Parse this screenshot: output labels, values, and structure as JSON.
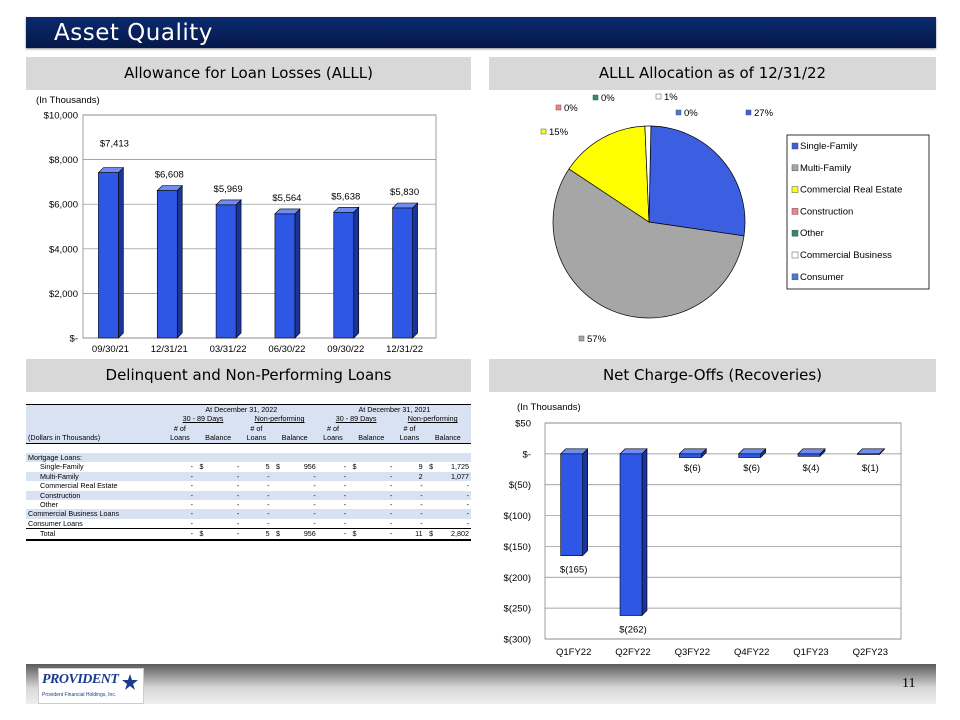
{
  "slide": {
    "title": "Asset Quality",
    "page_number": "11",
    "logo_text": "PROVIDENT",
    "logo_subtext": "Provident Financial Holdings, Inc."
  },
  "sections": {
    "allowance": "Allowance for Loan Losses (ALLL)",
    "allocation": "ALLL Allocation as of 12/31/22",
    "delinquent": "Delinquent and Non-Performing Loans",
    "chargeoffs": "Net Charge-Offs (Recoveries)"
  },
  "colors": {
    "bar_blue": "#2e57e6",
    "bar_blue_dark": "#1a3599",
    "header_blue": "#0a2a6e",
    "section_gray": "#d8d8d8",
    "table_shade": "#d9e2f3"
  },
  "chart_data": [
    {
      "type": "bar",
      "note": "(In Thousands)",
      "categories": [
        "09/30/21",
        "12/31/21",
        "03/31/22",
        "06/30/22",
        "09/30/22",
        "12/31/22"
      ],
      "values": [
        7413,
        6608,
        5969,
        5564,
        5638,
        5830
      ],
      "data_labels": [
        "$7,413",
        "$6,608",
        "$5,969",
        "$5,564",
        "$5,638",
        "$5,830"
      ],
      "yticks": [
        "$10,000",
        "$8,000",
        "$6,000",
        "$4,000",
        "$2,000",
        "$-"
      ],
      "ylim": [
        0,
        10000
      ],
      "grid": true
    },
    {
      "type": "pie",
      "slices": [
        {
          "name": "Single-Family",
          "value": 27,
          "label": "27%",
          "color": "#3b5fe0"
        },
        {
          "name": "Multi-Family",
          "value": 57,
          "label": "57%",
          "color": "#a6a6a6"
        },
        {
          "name": "Commercial Real Estate",
          "value": 15,
          "label": "15%",
          "color": "#ffff00"
        },
        {
          "name": "Construction",
          "value": 0,
          "label": "0%",
          "color": "#ff7f7f"
        },
        {
          "name": "Other",
          "value": 0,
          "label": "0%",
          "color": "#2e8b6f"
        },
        {
          "name": "Commercial Business",
          "value": 1,
          "label": "1%",
          "color": "#ffffff"
        },
        {
          "name": "Consumer",
          "value": 0,
          "label": "0%",
          "color": "#4a7bd0"
        }
      ],
      "legend_position": "right"
    },
    {
      "type": "bar",
      "note": "(In Thousands)",
      "categories": [
        "Q1FY22",
        "Q2FY22",
        "Q3FY22",
        "Q4FY22",
        "Q1FY23",
        "Q2FY23"
      ],
      "values": [
        -165,
        -262,
        -6,
        -6,
        -4,
        -1
      ],
      "data_labels": [
        "$(165)",
        "$(262)",
        "$(6)",
        "$(6)",
        "$(4)",
        "$(1)"
      ],
      "yticks": [
        "$50",
        "$-",
        "$(50)",
        "$(100)",
        "$(150)",
        "$(200)",
        "$(250)",
        "$(300)"
      ],
      "ylim": [
        -300,
        50
      ],
      "grid": true
    },
    {
      "type": "table",
      "group_headers": [
        "At December 31, 2022",
        "At December 31, 2021"
      ],
      "sub_headers": [
        "30 - 89 Days",
        "Non-performing",
        "30 - 89 Days",
        "Non-performing"
      ],
      "col_top": [
        "# of",
        "",
        "# of",
        "",
        "# of",
        "",
        "# of",
        ""
      ],
      "col_bottom": [
        "Loans",
        "Balance",
        "Loans",
        "Balance",
        "Loans",
        "Balance",
        "Loans",
        "Balance"
      ],
      "row_header_label": "(Dollars in Thousands)",
      "section_label": "Mortgage Loans:",
      "rows": [
        {
          "label": "Single-Family",
          "cells": [
            "-",
            "$",
            "-",
            "5",
            "$",
            "956",
            "-",
            "$",
            "-",
            "9",
            "$",
            "1,725"
          ]
        },
        {
          "label": "Multi-Family",
          "cells": [
            "-",
            "",
            "-",
            "-",
            "",
            "-",
            "-",
            "",
            "-",
            "2",
            "",
            "1,077"
          ]
        },
        {
          "label": "Commercial Real Estate",
          "cells": [
            "-",
            "",
            "-",
            "-",
            "",
            "-",
            "-",
            "",
            "-",
            "-",
            "",
            "-"
          ]
        },
        {
          "label": "Construction",
          "cells": [
            "-",
            "",
            "-",
            "-",
            "",
            "-",
            "-",
            "",
            "-",
            "-",
            "",
            "-"
          ]
        },
        {
          "label": "Other",
          "cells": [
            "-",
            "",
            "-",
            "-",
            "",
            "-",
            "-",
            "",
            "-",
            "-",
            "",
            "-"
          ]
        },
        {
          "label": "Commercial Business Loans",
          "cells": [
            "-",
            "",
            "-",
            "-",
            "",
            "-",
            "-",
            "",
            "-",
            "-",
            "",
            "-"
          ]
        },
        {
          "label": "Consumer Loans",
          "cells": [
            "-",
            "",
            "-",
            "-",
            "",
            "-",
            "-",
            "",
            "-",
            "-",
            "",
            "-"
          ]
        }
      ],
      "total": {
        "label": "Total",
        "cells": [
          "-",
          "$",
          "-",
          "5",
          "$",
          "956",
          "-",
          "$",
          "-",
          "11",
          "$",
          "2,802"
        ]
      }
    }
  ]
}
